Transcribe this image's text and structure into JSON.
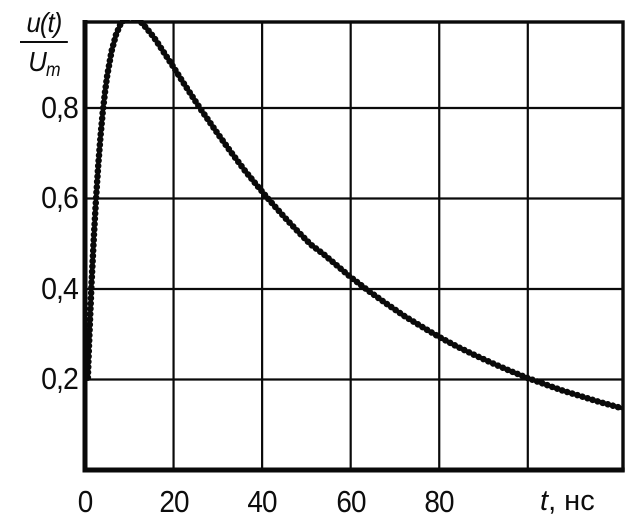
{
  "figure": {
    "ylabel": {
      "numerator": "u(t)",
      "denominator_base": "U",
      "denominator_sub": "m"
    },
    "xlabel": {
      "variable": "t",
      "unit": ", нс"
    }
  },
  "chart_data": {
    "type": "line",
    "title": "",
    "xlabel": "t, нс",
    "ylabel": "u(t)/Um",
    "xlim": [
      0,
      121.5
    ],
    "ylim": [
      0,
      0.99
    ],
    "grid": true,
    "x_gridlines": [
      20,
      40,
      60,
      80,
      100
    ],
    "y_gridlines": [
      0.2,
      0.4,
      0.6,
      0.8
    ],
    "x_tick_labels": [
      {
        "value": 0,
        "label": "0"
      },
      {
        "value": 20,
        "label": "20"
      },
      {
        "value": 40,
        "label": "40"
      },
      {
        "value": 60,
        "label": "60"
      },
      {
        "value": 80,
        "label": "80"
      }
    ],
    "y_tick_labels": [
      {
        "value": 0.8,
        "label": "0,8"
      },
      {
        "value": 0.6,
        "label": "0,6"
      },
      {
        "value": 0.4,
        "label": "0,4"
      },
      {
        "value": 0.2,
        "label": "0,2"
      }
    ],
    "line_color": "#0a0a0a",
    "series": [
      {
        "name": "u(t)/Um",
        "x": [
          0.65,
          0.8,
          1,
          1.5,
          2,
          2.5,
          3,
          3.5,
          4,
          4.5,
          5,
          6,
          7,
          8,
          9,
          10,
          11,
          12,
          13,
          14,
          15,
          16,
          18,
          20,
          22,
          24,
          26,
          28,
          30,
          33,
          36,
          39,
          42,
          45,
          48,
          51,
          54,
          57,
          60,
          64,
          68,
          72,
          76,
          80,
          84,
          88,
          92,
          96,
          100,
          104,
          108,
          112,
          116,
          121.5
        ],
        "y": [
          0.204,
          0.245,
          0.298,
          0.416,
          0.517,
          0.602,
          0.675,
          0.737,
          0.79,
          0.833,
          0.87,
          0.926,
          0.962,
          0.985,
          0.997,
          1.0,
          1.0,
          0.995,
          0.986,
          0.975,
          0.963,
          0.95,
          0.92,
          0.89,
          0.859,
          0.829,
          0.799,
          0.771,
          0.743,
          0.702,
          0.663,
          0.627,
          0.592,
          0.559,
          0.528,
          0.498,
          0.476,
          0.451,
          0.426,
          0.396,
          0.368,
          0.341,
          0.317,
          0.294,
          0.273,
          0.254,
          0.236,
          0.219,
          0.203,
          0.189,
          0.175,
          0.163,
          0.151,
          0.136
        ]
      }
    ]
  }
}
